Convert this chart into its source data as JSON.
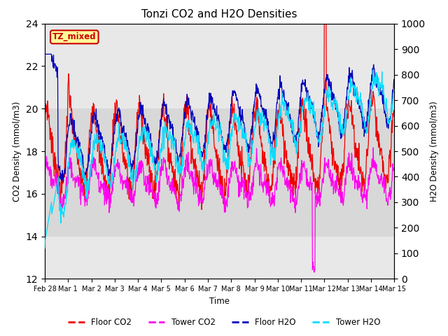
{
  "title": "Tonzi CO2 and H2O Densities",
  "xlabel": "Time",
  "ylabel_left": "CO2 Density (mmol/m3)",
  "ylabel_right": "H2O Density (mmol/m3)",
  "ylim_left": [
    12,
    24
  ],
  "ylim_right": [
    0,
    1000
  ],
  "yticks_left": [
    12,
    14,
    16,
    18,
    20,
    22,
    24
  ],
  "yticks_right": [
    0,
    100,
    200,
    300,
    400,
    500,
    600,
    700,
    800,
    900,
    1000
  ],
  "shade_band": [
    14,
    20
  ],
  "shade_color": "#d8d8d8",
  "plot_bg": "#e8e8e8",
  "annotation_text": "TZ_mixed",
  "line_colors": {
    "floor_co2": "#ee0000",
    "tower_co2": "#ff00ee",
    "floor_h2o": "#0000bb",
    "tower_h2o": "#00ddff"
  },
  "line_labels": [
    "Floor CO2",
    "Tower CO2",
    "Floor H2O",
    "Tower H2O"
  ],
  "num_points": 1000,
  "figsize": [
    6.4,
    4.8
  ],
  "dpi": 100
}
